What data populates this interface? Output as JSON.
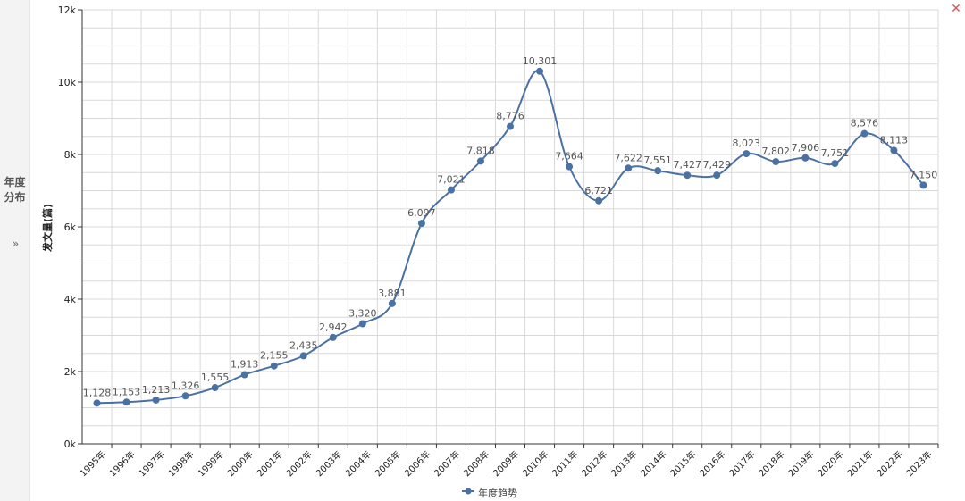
{
  "sidebar": {
    "label": "年度分布",
    "chevron": "»"
  },
  "close": {
    "icon": "close-icon",
    "glyph": "✕"
  },
  "colors": {
    "series": "#4a71a3",
    "grid": "#d9d9d9",
    "axis": "#333333",
    "label": "#555555"
  },
  "chart_data": {
    "type": "line",
    "title": "",
    "xlabel": "",
    "ylabel": "发文量(篇)",
    "ylim": [
      0,
      12000
    ],
    "yticks": [
      0,
      2000,
      4000,
      6000,
      8000,
      10000,
      12000
    ],
    "ytick_labels": [
      "0k",
      "2k",
      "4k",
      "6k",
      "8k",
      "10k",
      "12k"
    ],
    "grid": true,
    "legend_position": "bottom-center",
    "categories": [
      "1995年",
      "1996年",
      "1997年",
      "1998年",
      "1999年",
      "2000年",
      "2001年",
      "2002年",
      "2003年",
      "2004年",
      "2005年",
      "2006年",
      "2007年",
      "2008年",
      "2009年",
      "2010年",
      "2011年",
      "2012年",
      "2013年",
      "2014年",
      "2015年",
      "2016年",
      "2017年",
      "2018年",
      "2019年",
      "2020年",
      "2021年",
      "2022年",
      "2023年"
    ],
    "series": [
      {
        "name": "年度趋势",
        "values": [
          1128,
          1153,
          1213,
          1326,
          1555,
          1913,
          2155,
          2435,
          2942,
          3320,
          3881,
          6097,
          7021,
          7818,
          8776,
          10301,
          7664,
          6721,
          7622,
          7551,
          7427,
          7429,
          8023,
          7802,
          7906,
          7751,
          8576,
          8113,
          7150
        ],
        "labels": [
          "1,128",
          "1,153",
          "1,213",
          "1,326",
          "1,555",
          "1,913",
          "2,155",
          "2,435",
          "2,942",
          "3,320",
          "3,881",
          "6,097",
          "7,021",
          "7,818",
          "8,776",
          "10,301",
          "7,664",
          "6,721",
          "7,622",
          "7,551",
          "7,427",
          "7,429",
          "8,023",
          "7,802",
          "7,906",
          "7,751",
          "8,576",
          "8,113",
          "7,150"
        ]
      }
    ]
  }
}
